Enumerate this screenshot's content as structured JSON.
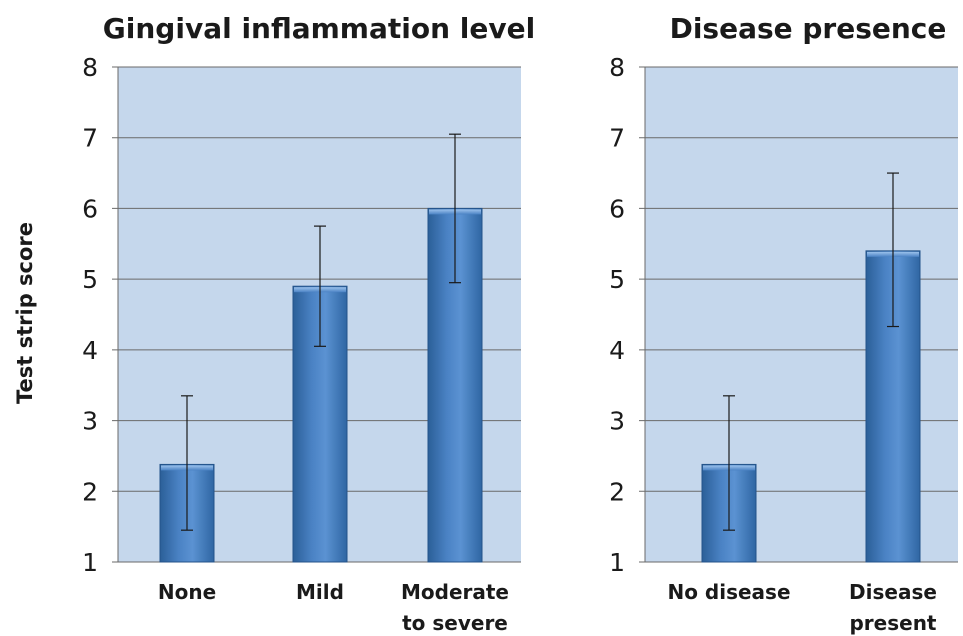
{
  "chart_data": [
    {
      "type": "bar",
      "title": "Gingival inflammation level",
      "ylabel": "Test strip score",
      "ylim": [
        1,
        8
      ],
      "yticks": [
        1,
        2,
        3,
        4,
        5,
        6,
        7,
        8
      ],
      "grid": true,
      "categories": [
        [
          "None"
        ],
        [
          "Mild"
        ],
        [
          "Moderate",
          "to severe"
        ]
      ],
      "values": [
        2.38,
        4.9,
        6.0
      ],
      "error_low": [
        1.45,
        4.05,
        4.95
      ],
      "error_high": [
        3.35,
        5.75,
        7.05
      ]
    },
    {
      "type": "bar",
      "title": "Disease presence",
      "ylabel": "",
      "ylim": [
        1,
        8
      ],
      "yticks": [
        1,
        2,
        3,
        4,
        5,
        6,
        7,
        8
      ],
      "grid": true,
      "categories": [
        [
          "No disease"
        ],
        [
          "Disease",
          "present"
        ]
      ],
      "values": [
        2.38,
        5.4
      ],
      "error_low": [
        1.45,
        4.33
      ],
      "error_high": [
        3.35,
        6.5
      ]
    }
  ],
  "colors": {
    "plot_background": "#c5d7ec",
    "bar_dark": "#2b5f98",
    "bar_mid": "#4a82c4",
    "bar_light": "#7aa8dd",
    "grid": "#6a6a6a",
    "error": "#1a1a1a"
  }
}
